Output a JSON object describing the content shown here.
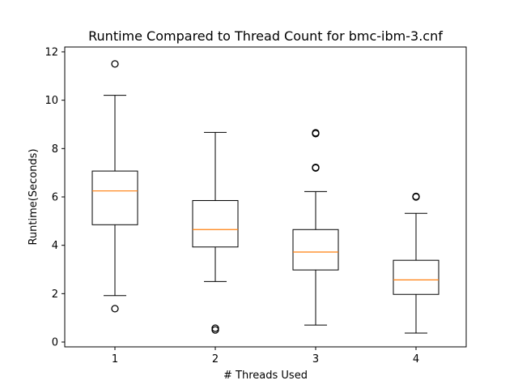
{
  "chart_data": {
    "type": "boxplot",
    "title": "Runtime Compared to Thread Count for bmc-ibm-3.cnf",
    "xlabel": "# Threads Used",
    "ylabel": "Runtime(Seconds)",
    "ylim": [
      -0.2,
      12.2
    ],
    "yticks": [
      0,
      2,
      4,
      6,
      8,
      10,
      12
    ],
    "categories": [
      "1",
      "2",
      "3",
      "4"
    ],
    "boxes": [
      {
        "category": "1",
        "whisker_low": 1.92,
        "q1": 4.85,
        "median": 6.25,
        "q3": 7.07,
        "whisker_high": 10.2,
        "outliers": [
          11.5,
          1.38
        ]
      },
      {
        "category": "2",
        "whisker_low": 2.5,
        "q1": 3.93,
        "median": 4.65,
        "q3": 5.85,
        "whisker_high": 8.67,
        "outliers": [
          0.5,
          0.57
        ]
      },
      {
        "category": "3",
        "whisker_low": 0.7,
        "q1": 2.98,
        "median": 3.72,
        "q3": 4.65,
        "whisker_high": 6.22,
        "outliers": [
          8.62,
          8.65,
          7.2,
          7.22
        ]
      },
      {
        "category": "4",
        "whisker_low": 0.37,
        "q1": 1.97,
        "median": 2.57,
        "q3": 3.38,
        "whisker_high": 5.32,
        "outliers": [
          6.0,
          6.02
        ]
      }
    ],
    "colors": {
      "box": "#000000",
      "median": "#ff7f0e"
    },
    "grid": false,
    "legend": "none"
  }
}
